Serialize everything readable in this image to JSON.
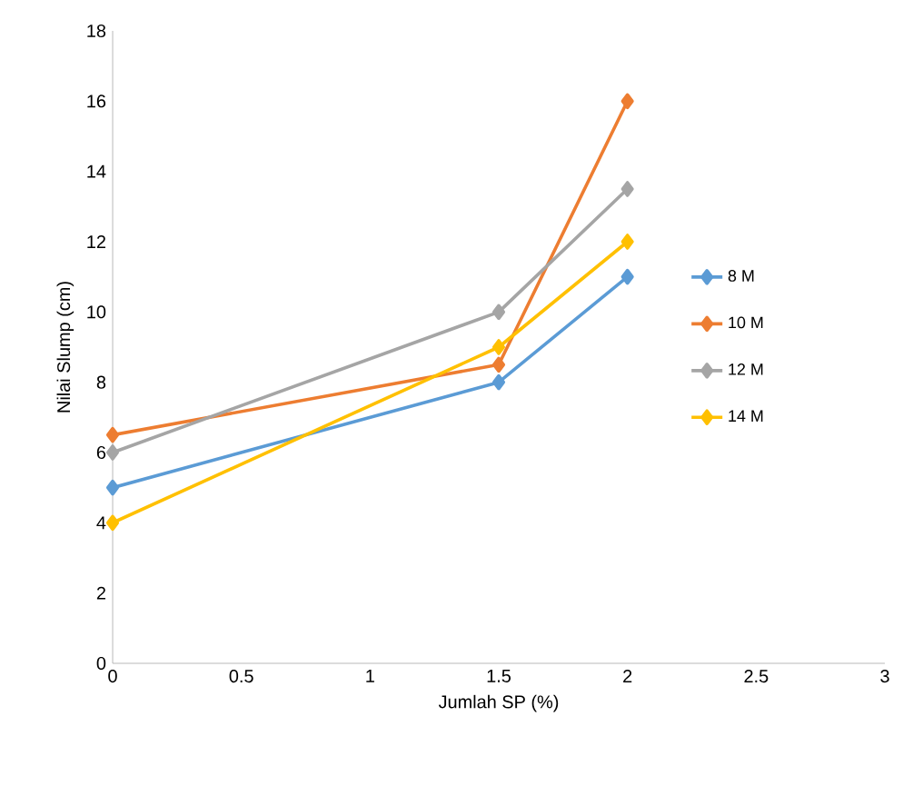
{
  "chart_data": {
    "type": "line",
    "xlabel": "Jumlah SP (%)",
    "ylabel": "Nilai Slump (cm)",
    "x": [
      0,
      1.5,
      2
    ],
    "series": [
      {
        "name": "8 M",
        "color": "#5b9bd5",
        "values": [
          5,
          8,
          11
        ]
      },
      {
        "name": "10 M",
        "color": "#ed7d31",
        "values": [
          6.5,
          8.5,
          16
        ]
      },
      {
        "name": "12 M",
        "color": "#a5a5a5",
        "values": [
          6,
          10,
          13.5
        ]
      },
      {
        "name": "14 M",
        "color": "#ffc000",
        "values": [
          4,
          9,
          12
        ]
      }
    ],
    "xlim": [
      0,
      3
    ],
    "xticks": [
      0,
      0.5,
      1,
      1.5,
      2,
      2.5,
      3
    ],
    "ylim": [
      0,
      18
    ],
    "yticks": [
      0,
      2,
      4,
      6,
      8,
      10,
      12,
      14,
      16,
      18
    ],
    "marker": "diamond",
    "line_style": "solid",
    "legend": "right",
    "grid": false
  }
}
